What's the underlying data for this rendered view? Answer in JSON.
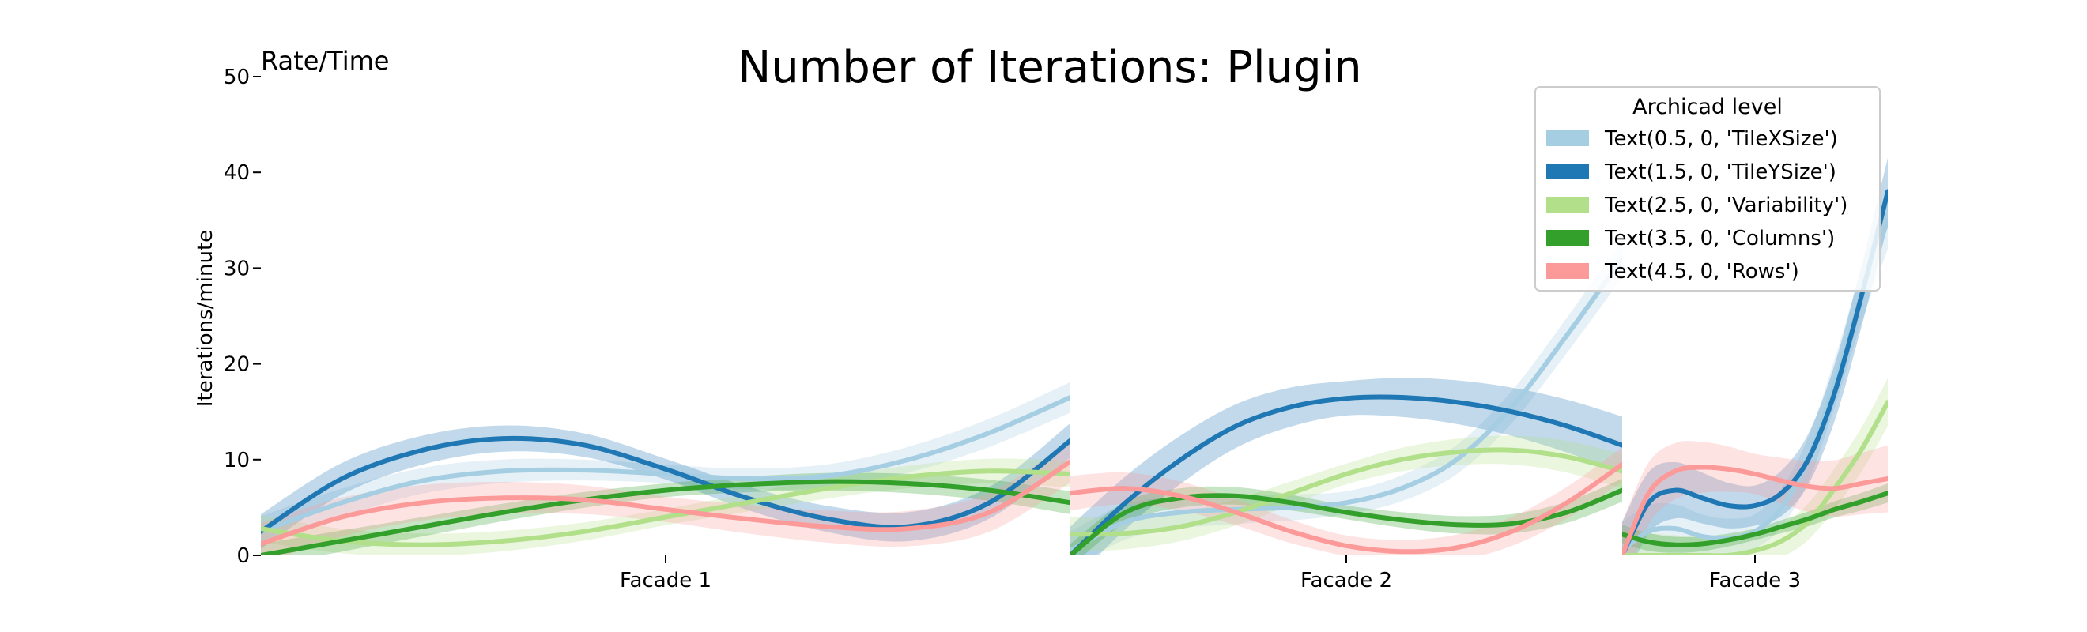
{
  "chart_data": {
    "type": "line",
    "title": "Number of Iterations: Plugin",
    "corner_label": "Rate/Time",
    "ylabel": "Iterations/minute",
    "ylim": [
      0,
      50
    ],
    "yticks": [
      "0",
      "10",
      "20",
      "30",
      "40",
      "50"
    ],
    "categories": [
      "Facade 1",
      "Facade 2",
      "Facade 3"
    ],
    "legend": {
      "title": "Archicad level",
      "position": "top-right"
    },
    "series": [
      {
        "name": "Text(0.5, 0, 'TileXSize')",
        "color": "#a6cee3",
        "facades": [
          {
            "x": [
              0,
              0.1,
              0.2,
              0.3,
              0.4,
              0.5,
              0.6,
              0.7,
              0.8,
              0.9,
              1.0
            ],
            "y": [
              2.5,
              5.5,
              7.8,
              8.8,
              8.9,
              8.5,
              8.0,
              8.3,
              10.0,
              12.8,
              16.5
            ],
            "band": 1.6
          },
          {
            "x": [
              0,
              0.1,
              0.2,
              0.3,
              0.4,
              0.5,
              0.6,
              0.7,
              0.8,
              0.9,
              1.0
            ],
            "y": [
              0.5,
              3.5,
              4.5,
              4.8,
              5.0,
              5.5,
              7.0,
              10.0,
              15.5,
              23.0,
              31.0
            ],
            "band": 2.0
          },
          {
            "x": [
              0,
              0.1,
              0.2,
              0.3,
              0.4,
              0.5,
              0.6,
              0.7,
              0.8,
              0.9,
              1.0
            ],
            "y": [
              0.5,
              2.5,
              2.8,
              2.0,
              1.8,
              2.5,
              5.0,
              10.0,
              18.0,
              27.0,
              35.0
            ],
            "band": 3.0
          }
        ]
      },
      {
        "name": "Text(1.5, 0, 'TileYSize')",
        "color": "#1f78b4",
        "facades": [
          {
            "x": [
              0,
              0.1,
              0.2,
              0.3,
              0.4,
              0.5,
              0.6,
              0.7,
              0.8,
              0.9,
              1.0
            ],
            "y": [
              2.5,
              8.0,
              11.0,
              12.2,
              11.5,
              9.0,
              6.0,
              3.8,
              3.0,
              5.5,
              12.0
            ],
            "band": 1.8
          },
          {
            "x": [
              0,
              0.1,
              0.2,
              0.3,
              0.4,
              0.5,
              0.6,
              0.7,
              0.8,
              0.9,
              1.0
            ],
            "y": [
              0,
              5.5,
              10.0,
              13.5,
              15.5,
              16.4,
              16.5,
              16.0,
              15.0,
              13.5,
              11.5
            ],
            "band": 3.0
          },
          {
            "x": [
              0,
              0.1,
              0.2,
              0.3,
              0.4,
              0.5,
              0.6,
              0.7,
              0.8,
              0.9,
              1.0
            ],
            "y": [
              0,
              5.5,
              6.8,
              6.0,
              5.2,
              5.2,
              6.5,
              10.0,
              17.0,
              27.0,
              38.0
            ],
            "band": 3.5
          }
        ]
      },
      {
        "name": "Text(2.5, 0, 'Variability')",
        "color": "#b2df8a",
        "facades": [
          {
            "x": [
              0,
              0.1,
              0.2,
              0.3,
              0.4,
              0.5,
              0.6,
              0.7,
              0.8,
              0.9,
              1.0
            ],
            "y": [
              2.8,
              1.5,
              1.1,
              1.5,
              2.5,
              4.0,
              5.5,
              7.0,
              8.2,
              8.8,
              8.5
            ],
            "band": 1.4
          },
          {
            "x": [
              0,
              0.1,
              0.2,
              0.3,
              0.4,
              0.5,
              0.6,
              0.7,
              0.8,
              0.9,
              1.0
            ],
            "y": [
              2.2,
              2.3,
              3.0,
              4.5,
              6.5,
              8.5,
              10.0,
              10.8,
              11.0,
              10.3,
              8.8
            ],
            "band": 1.8
          },
          {
            "x": [
              0,
              0.1,
              0.2,
              0.3,
              0.4,
              0.5,
              0.6,
              0.7,
              0.8,
              0.9,
              1.0
            ],
            "y": [
              0,
              0,
              0,
              0,
              0,
              0.5,
              1.5,
              3.5,
              7.0,
              11.0,
              16.0
            ],
            "band": 2.5
          }
        ]
      },
      {
        "name": "Text(3.5, 0, 'Columns')",
        "color": "#33a02c",
        "facades": [
          {
            "x": [
              0,
              0.1,
              0.2,
              0.3,
              0.4,
              0.5,
              0.6,
              0.7,
              0.8,
              0.9,
              1.0
            ],
            "y": [
              0,
              1.5,
              3.0,
              4.5,
              5.8,
              6.8,
              7.4,
              7.7,
              7.5,
              6.8,
              5.5
            ],
            "band": 1.2
          },
          {
            "x": [
              0,
              0.1,
              0.2,
              0.3,
              0.4,
              0.5,
              0.6,
              0.7,
              0.8,
              0.9,
              1.0
            ],
            "y": [
              0,
              4.5,
              6.0,
              6.2,
              5.5,
              4.5,
              3.7,
              3.2,
              3.3,
              4.5,
              6.8
            ],
            "band": 1.2
          },
          {
            "x": [
              0,
              0.1,
              0.2,
              0.3,
              0.4,
              0.5,
              0.6,
              0.7,
              0.8,
              0.9,
              1.0
            ],
            "y": [
              2.2,
              1.4,
              1.1,
              1.2,
              1.6,
              2.2,
              3.0,
              3.8,
              4.8,
              5.6,
              6.5
            ],
            "band": 1.0
          }
        ]
      },
      {
        "name": "Text(4.5, 0, 'Rows')",
        "color": "#fb9a99",
        "facades": [
          {
            "x": [
              0,
              0.1,
              0.2,
              0.3,
              0.4,
              0.5,
              0.6,
              0.7,
              0.8,
              0.9,
              1.0
            ],
            "y": [
              1.2,
              4.0,
              5.5,
              6.0,
              5.8,
              4.8,
              3.8,
              3.0,
              2.8,
              4.5,
              9.8
            ],
            "band": 2.2
          },
          {
            "x": [
              0,
              0.1,
              0.2,
              0.3,
              0.4,
              0.5,
              0.6,
              0.7,
              0.8,
              0.9,
              1.0
            ],
            "y": [
              6.5,
              7.0,
              6.2,
              4.5,
              2.5,
              1.0,
              0.4,
              0.8,
              2.5,
              5.5,
              9.5
            ],
            "band": 1.8
          },
          {
            "x": [
              0,
              0.1,
              0.2,
              0.3,
              0.4,
              0.5,
              0.6,
              0.7,
              0.8,
              0.9,
              1.0
            ],
            "y": [
              0,
              6.5,
              8.8,
              9.2,
              9.0,
              8.5,
              7.8,
              7.2,
              7.0,
              7.5,
              8.0
            ],
            "band": 3.5
          }
        ]
      }
    ]
  }
}
